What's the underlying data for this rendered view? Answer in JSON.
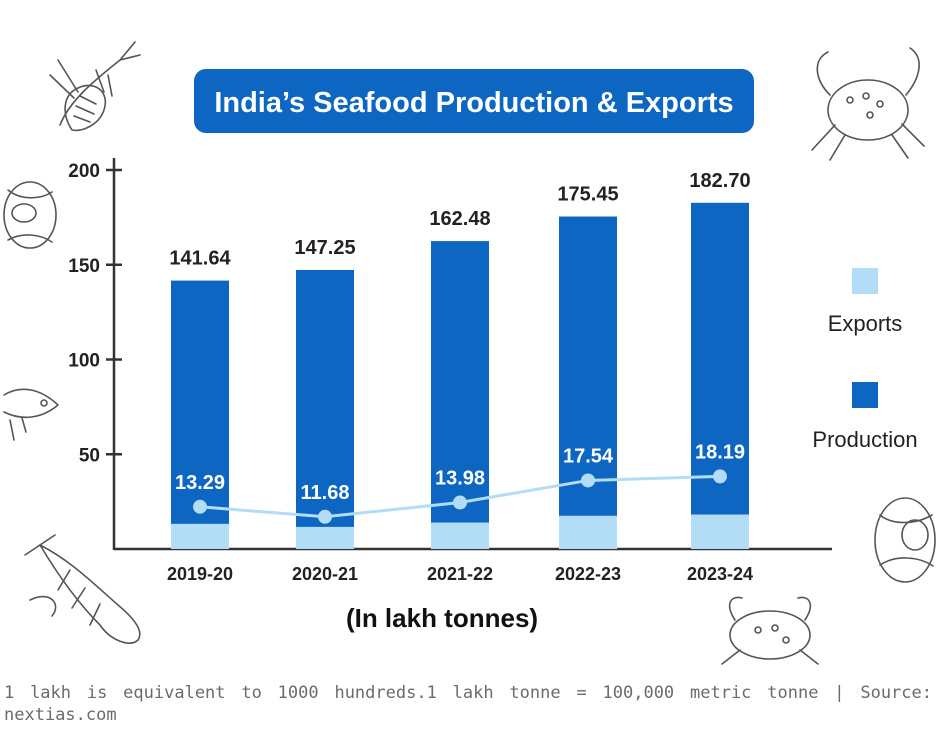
{
  "chart_data": {
    "type": "bar",
    "title": "India’s Seafood Production & Exports",
    "xlabel": "(In lakh tonnes)",
    "ylabel": "",
    "categories": [
      "2019-20",
      "2020-21",
      "2021-22",
      "2022-23",
      "2023-24"
    ],
    "ylim": [
      0,
      200
    ],
    "yticks": [
      50,
      100,
      150,
      200
    ],
    "series": [
      {
        "name": "Production",
        "values": [
          141.64,
          147.25,
          162.48,
          175.45,
          182.7
        ],
        "labels": [
          "141.64",
          "147.25",
          "162.48",
          "175.45",
          "182.70"
        ],
        "color": "#0c66c2"
      },
      {
        "name": "Exports",
        "values": [
          13.29,
          11.68,
          13.98,
          17.54,
          18.19
        ],
        "labels": [
          "13.29",
          "11.68",
          "13.98",
          "17.54",
          "18.19"
        ],
        "color": "#b3dcf6"
      }
    ],
    "legend_position": "right",
    "grid": false
  },
  "caption": "1 lakh is equivalent to 1000 hundreds.1 lakh tonne = 100,000 metric tonne | Source: nextias.com",
  "colors": {
    "title_bg": "#0c66c2",
    "production": "#0c66c2",
    "exports": "#b3dcf6",
    "line": "#b3dcf6"
  }
}
